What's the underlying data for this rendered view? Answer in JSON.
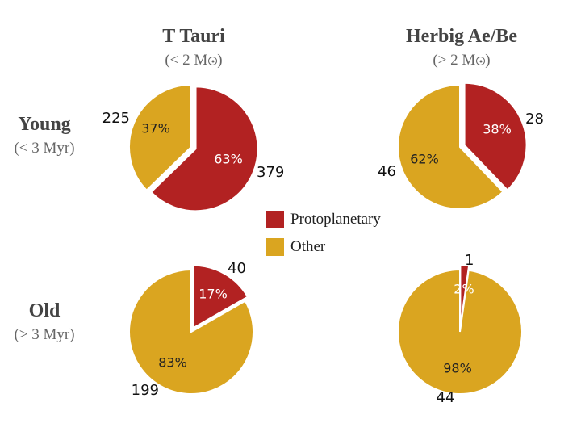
{
  "headers": {
    "columns": [
      {
        "title": "T Tauri",
        "subtitle_prefix": "(< 2 M",
        "subtitle_suffix": ")"
      },
      {
        "title": "Herbig Ae/Be",
        "subtitle_prefix": "(> 2 M",
        "subtitle_suffix": ")"
      }
    ],
    "rows": [
      {
        "title": "Young",
        "subtitle": "(< 3 Myr)"
      },
      {
        "title": "Old",
        "subtitle": "(> 3 Myr)"
      }
    ]
  },
  "legend": [
    {
      "label": "Protoplanetary",
      "color": "#b22222"
    },
    {
      "label": "Other",
      "color": "#daa520"
    }
  ],
  "chart_data": [
    {
      "type": "pie",
      "column": "T Tauri",
      "row": "Young",
      "slices": [
        {
          "label": "Protoplanetary",
          "count": 379,
          "percent": "63%",
          "color": "#b22222"
        },
        {
          "label": "Other",
          "count": 225,
          "percent": "37%",
          "color": "#daa520"
        }
      ]
    },
    {
      "type": "pie",
      "column": "Herbig Ae/Be",
      "row": "Young",
      "slices": [
        {
          "label": "Protoplanetary",
          "count": 28,
          "percent": "38%",
          "color": "#b22222"
        },
        {
          "label": "Other",
          "count": 46,
          "percent": "62%",
          "color": "#daa520"
        }
      ]
    },
    {
      "type": "pie",
      "column": "T Tauri",
      "row": "Old",
      "slices": [
        {
          "label": "Protoplanetary",
          "count": 40,
          "percent": "17%",
          "color": "#b22222"
        },
        {
          "label": "Other",
          "count": 199,
          "percent": "83%",
          "color": "#daa520"
        }
      ]
    },
    {
      "type": "pie",
      "column": "Herbig Ae/Be",
      "row": "Old",
      "slices": [
        {
          "label": "Protoplanetary",
          "count": 1,
          "percent": "2%",
          "color": "#b22222"
        },
        {
          "label": "Other",
          "count": 44,
          "percent": "98%",
          "color": "#daa520"
        }
      ]
    }
  ]
}
